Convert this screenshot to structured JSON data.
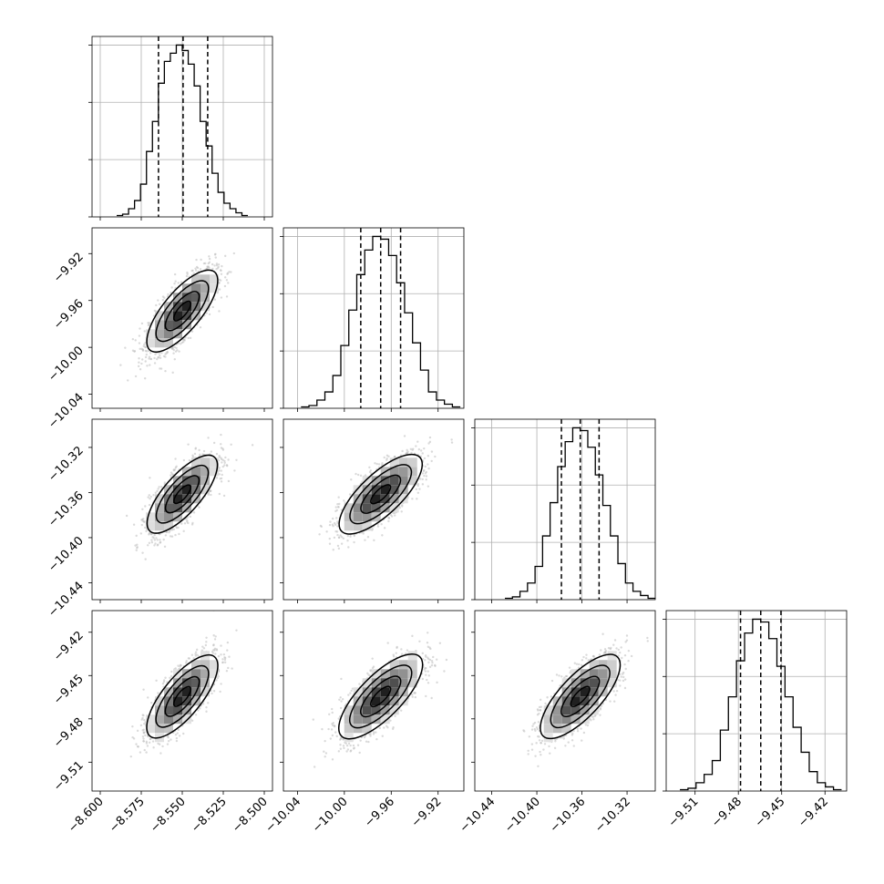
{
  "chart_data": {
    "type": "corner",
    "grid": true,
    "parameters": [
      {
        "range": [
          -8.605,
          -8.495
        ],
        "ticks": [
          -8.6,
          -8.575,
          -8.55,
          -8.525,
          -8.5
        ],
        "tick_labels": [
          "−8.600",
          "−8.575",
          "−8.550",
          "−8.525",
          "−8.500"
        ],
        "quantiles": [
          -8.5645,
          -8.5495,
          -8.5345
        ],
        "mean": -8.55,
        "sd": 0.01,
        "hist": [
          0.5,
          1,
          3,
          6,
          12,
          24,
          35,
          49,
          57,
          60,
          63,
          61,
          56,
          48,
          35,
          26,
          16,
          9,
          5,
          3,
          1.5,
          0.5
        ]
      },
      {
        "range": [
          -10.052,
          -9.898
        ],
        "ticks": [
          -10.04,
          -10.0,
          -9.96,
          -9.92
        ],
        "tick_labels": [
          "−10.04",
          "−10.00",
          "−9.96",
          "−9.92"
        ],
        "quantiles": [
          -9.986,
          -9.969,
          -9.952
        ],
        "mean": -9.969,
        "sd": 0.017,
        "hist": [
          0.5,
          1,
          3,
          6,
          12,
          23,
          36,
          49,
          58,
          63,
          62,
          56,
          46,
          35,
          24,
          14,
          6,
          3,
          1.5,
          0.5
        ]
      },
      {
        "range": [
          -10.455,
          -10.295
        ],
        "ticks": [
          -10.44,
          -10.4,
          -10.36,
          -10.32
        ],
        "tick_labels": [
          "−10.44",
          "−10.40",
          "−10.36",
          "−10.32"
        ],
        "quantiles": [
          -10.3782,
          -10.3615,
          -10.3448
        ],
        "mean": -10.3615,
        "sd": 0.0167,
        "hist": [
          0.5,
          1,
          3,
          6,
          12,
          23,
          35,
          48,
          57,
          62,
          61,
          55,
          45,
          34,
          23,
          13,
          6,
          3,
          1.5,
          0.5
        ]
      },
      {
        "range": [
          -9.53,
          -9.405
        ],
        "ticks": [
          -9.51,
          -9.48,
          -9.45,
          -9.42
        ],
        "tick_labels": [
          "−9.51",
          "−9.48",
          "−9.45",
          "−9.42"
        ],
        "quantiles": [
          -9.4785,
          -9.4645,
          -9.4505
        ],
        "mean": -9.4645,
        "sd": 0.014,
        "hist": [
          0.5,
          1,
          3,
          6,
          11,
          22,
          34,
          47,
          57,
          62,
          61,
          55,
          45,
          34,
          23,
          14,
          7,
          3,
          1.5,
          0.5
        ]
      }
    ],
    "correlation": 0.75
  }
}
